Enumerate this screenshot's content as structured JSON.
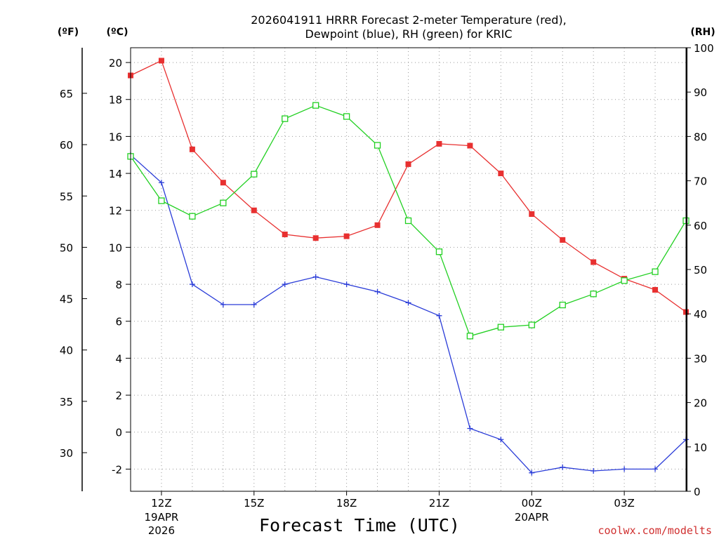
{
  "chart_data": {
    "type": "line",
    "title_line1": "2026041911 HRRR Forecast 2-meter Temperature (red),",
    "title_line2": "Dewpoint (blue), RH (green) for KRIC",
    "xlabel": "Forecast Time (UTC)",
    "credit": "coolwx.com/modelts",
    "units": {
      "fahrenheit": "(ºF)",
      "celsius": "(ºC)",
      "rh": "(RH)"
    },
    "x_hours": [
      11,
      12,
      13,
      14,
      15,
      16,
      17,
      18,
      19,
      20,
      21,
      22,
      23,
      24,
      25,
      26,
      27,
      28,
      29
    ],
    "x_ticks": [
      {
        "hour": 12,
        "line1": "12Z",
        "line2": "19APR",
        "line3": "2026"
      },
      {
        "hour": 15,
        "line1": "15Z"
      },
      {
        "hour": 18,
        "line1": "18Z"
      },
      {
        "hour": 21,
        "line1": "21Z"
      },
      {
        "hour": 24,
        "line1": "00Z",
        "line2": "20APR"
      },
      {
        "hour": 27,
        "line1": "03Z"
      }
    ],
    "xlim": [
      11,
      29
    ],
    "ylim_c": [
      -3.2,
      20.8
    ],
    "y_ticks_c": [
      "-2",
      "0",
      "2",
      "4",
      "6",
      "8",
      "10",
      "12",
      "14",
      "16",
      "18",
      "20"
    ],
    "y_ticks_f": [
      "30",
      "35",
      "40",
      "45",
      "50",
      "55",
      "60",
      "65"
    ],
    "y_ticks_rh": [
      "0",
      "10",
      "20",
      "30",
      "40",
      "50",
      "60",
      "70",
      "80",
      "90",
      "100"
    ],
    "series": [
      {
        "name": "Temperature",
        "color": "#e83030",
        "marker": "square-filled",
        "values": [
          19.3,
          20.1,
          15.3,
          13.5,
          12.0,
          10.7,
          10.5,
          10.6,
          11.2,
          14.5,
          15.6,
          15.5,
          14.0,
          11.8,
          10.4,
          9.2,
          8.3,
          7.7,
          6.5
        ]
      },
      {
        "name": "Dewpoint",
        "color": "#2a3cd8",
        "marker": "plus",
        "values": [
          15.0,
          13.5,
          8.0,
          6.9,
          6.9,
          8.0,
          8.4,
          8.0,
          7.6,
          7.0,
          6.3,
          0.2,
          -0.4,
          -2.2,
          -1.9,
          -2.1,
          -2.0,
          -2.0,
          -0.4
        ]
      },
      {
        "name": "RH",
        "color": "#22d022",
        "marker": "square-open",
        "values": [
          75.5,
          65.5,
          62.0,
          65.0,
          71.5,
          84.0,
          87.0,
          84.5,
          78.0,
          61.0,
          54.0,
          35.0,
          37.0,
          37.5,
          42.0,
          44.5,
          47.5,
          49.5,
          61.0
        ]
      }
    ]
  }
}
